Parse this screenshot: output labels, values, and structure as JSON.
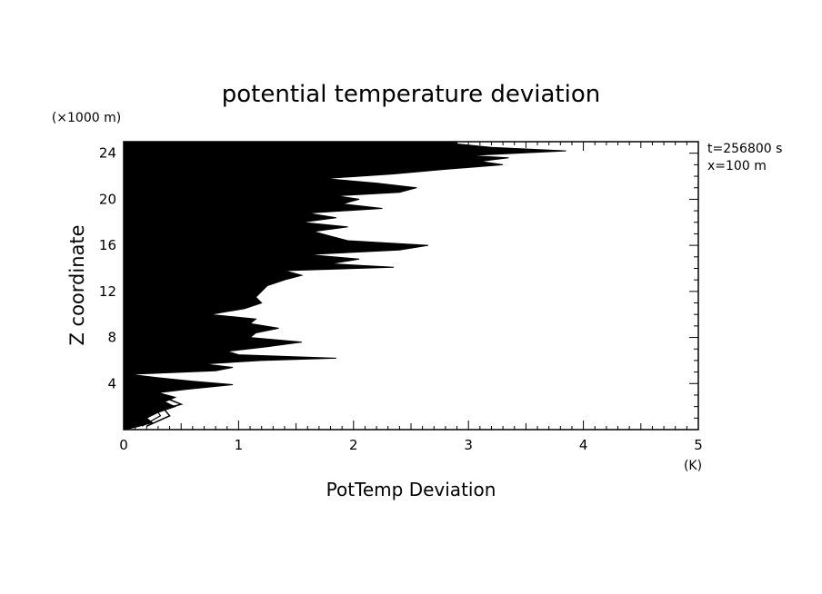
{
  "chart_data": {
    "type": "line",
    "title": "potential temperature deviation",
    "xlabel": "PotTemp Deviation",
    "x_unit": "(K)",
    "ylabel": "Z coordinate",
    "y_unit": "(×1000 m)",
    "annotations": [
      "t=256800 s",
      "x=100 m"
    ],
    "xlim": [
      0,
      5
    ],
    "ylim": [
      0,
      25
    ],
    "xticks": [
      0,
      1,
      2,
      3,
      4,
      5
    ],
    "yticks": [
      4,
      8,
      12,
      16,
      20,
      24
    ],
    "grid": false,
    "series": [
      {
        "style": "filled-profile",
        "color": "#000000",
        "points": [
          [
            0.1,
            0.2
          ],
          [
            0.25,
            0.6
          ],
          [
            0.2,
            1.0
          ],
          [
            0.3,
            1.5
          ],
          [
            0.45,
            2.0
          ],
          [
            0.35,
            2.4
          ],
          [
            0.45,
            2.8
          ],
          [
            0.3,
            3.2
          ],
          [
            0.55,
            3.5
          ],
          [
            0.95,
            3.9
          ],
          [
            0.6,
            4.2
          ],
          [
            0.3,
            4.5
          ],
          [
            0.05,
            4.8
          ],
          [
            0.8,
            5.1
          ],
          [
            0.95,
            5.4
          ],
          [
            0.7,
            5.7
          ],
          [
            1.2,
            6.0
          ],
          [
            1.85,
            6.2
          ],
          [
            1.0,
            6.5
          ],
          [
            0.9,
            6.8
          ],
          [
            1.25,
            7.2
          ],
          [
            1.55,
            7.6
          ],
          [
            1.1,
            8.0
          ],
          [
            1.15,
            8.4
          ],
          [
            1.35,
            8.8
          ],
          [
            1.1,
            9.2
          ],
          [
            1.15,
            9.6
          ],
          [
            0.75,
            10.0
          ],
          [
            1.05,
            10.5
          ],
          [
            1.2,
            11.0
          ],
          [
            1.15,
            11.5
          ],
          [
            1.2,
            12.0
          ],
          [
            1.25,
            12.5
          ],
          [
            1.4,
            13.0
          ],
          [
            1.55,
            13.4
          ],
          [
            1.4,
            13.8
          ],
          [
            2.35,
            14.1
          ],
          [
            1.8,
            14.4
          ],
          [
            2.05,
            14.8
          ],
          [
            1.6,
            15.2
          ],
          [
            2.4,
            15.6
          ],
          [
            2.65,
            16.0
          ],
          [
            1.95,
            16.4
          ],
          [
            1.8,
            16.8
          ],
          [
            1.65,
            17.2
          ],
          [
            1.95,
            17.6
          ],
          [
            1.55,
            18.0
          ],
          [
            1.85,
            18.4
          ],
          [
            1.6,
            18.8
          ],
          [
            2.25,
            19.2
          ],
          [
            1.9,
            19.6
          ],
          [
            2.05,
            20.0
          ],
          [
            1.85,
            20.3
          ],
          [
            2.4,
            20.6
          ],
          [
            2.55,
            21.0
          ],
          [
            2.2,
            21.4
          ],
          [
            1.75,
            21.8
          ],
          [
            2.35,
            22.2
          ],
          [
            2.8,
            22.6
          ],
          [
            3.3,
            23.0
          ],
          [
            3.1,
            23.3
          ],
          [
            3.35,
            23.6
          ],
          [
            3.0,
            23.8
          ],
          [
            3.85,
            24.2
          ],
          [
            3.2,
            24.5
          ],
          [
            2.9,
            24.8
          ]
        ]
      },
      {
        "style": "outline-profile",
        "color": "#000000",
        "points": [
          [
            0.2,
            0.3
          ],
          [
            0.4,
            1.2
          ],
          [
            0.35,
            1.8
          ],
          [
            0.5,
            2.2
          ],
          [
            0.4,
            2.6
          ],
          [
            0.25,
            3.0
          ]
        ]
      }
    ]
  }
}
